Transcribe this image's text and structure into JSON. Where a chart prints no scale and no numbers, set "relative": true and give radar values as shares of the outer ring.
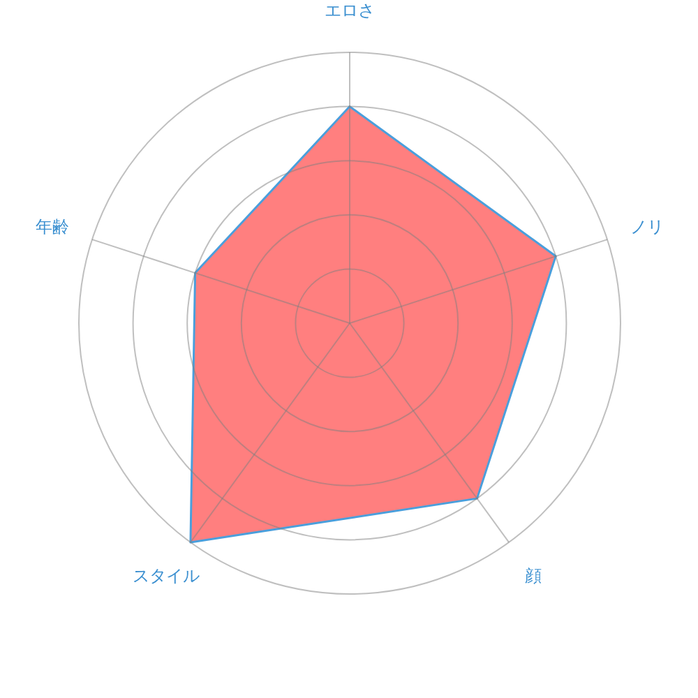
{
  "chart_data": {
    "type": "radar",
    "relative": true,
    "categories": [
      "エロさ",
      "ノリ",
      "顔",
      "スタイル",
      "年齢"
    ],
    "series": [
      {
        "color": "#ff7f7f",
        "values": [
          0.8,
          0.8,
          0.8,
          1.0,
          0.6
        ]
      }
    ]
  }
}
